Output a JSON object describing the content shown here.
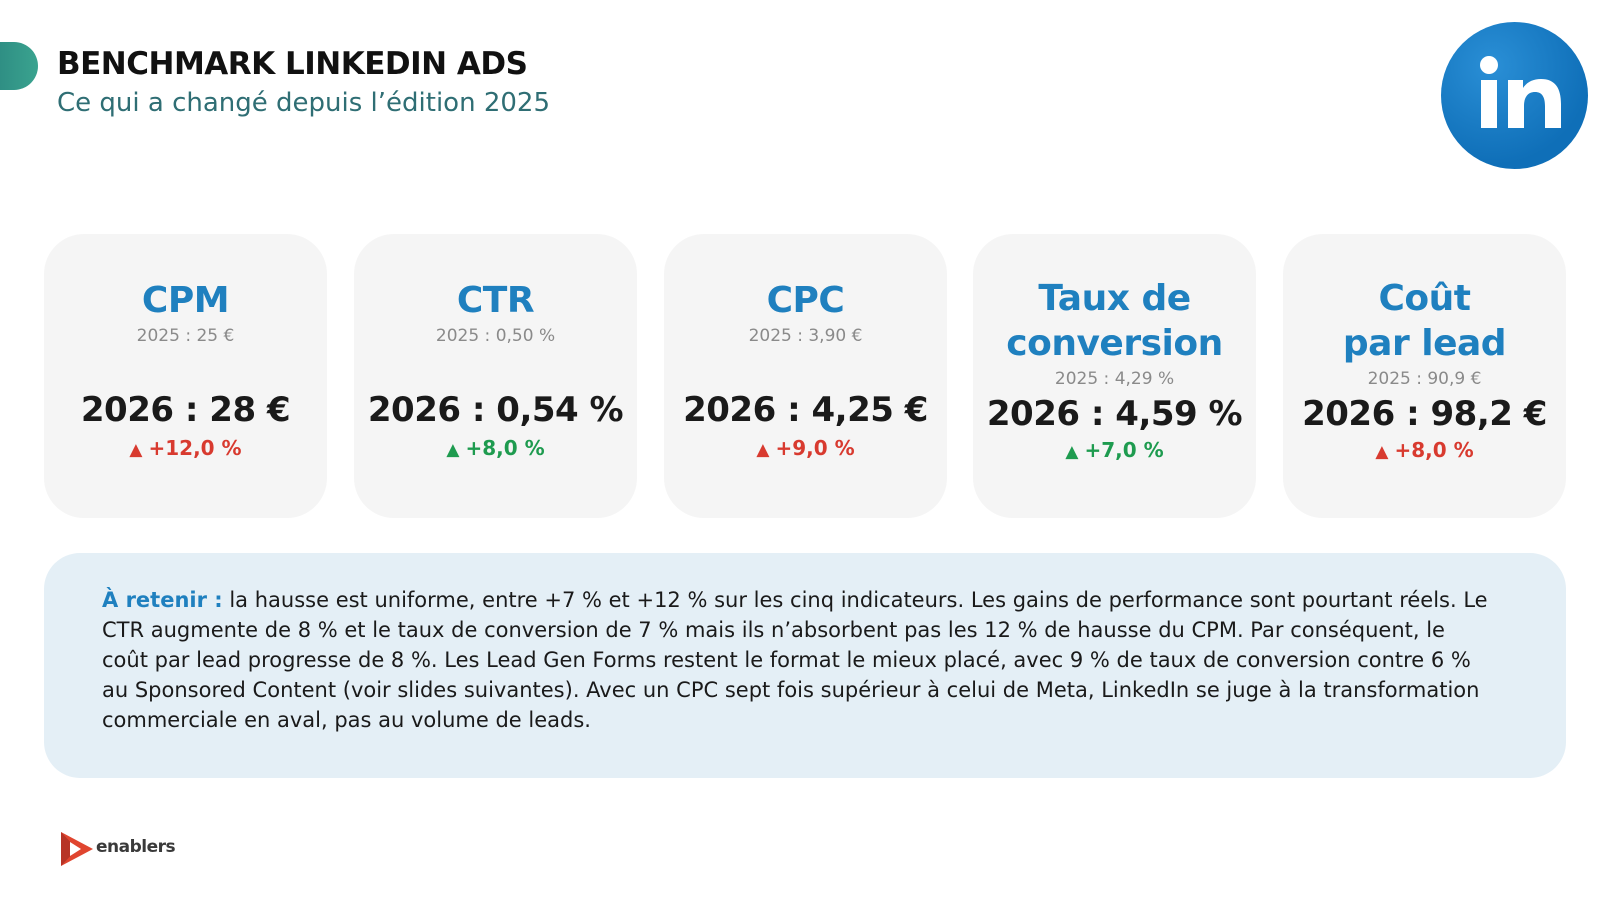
{
  "header": {
    "title": "BENCHMARK LINKEDIN ADS",
    "subtitle": "Ce qui a changé depuis l’édition 2025"
  },
  "colors": {
    "accent": "#3aa38f",
    "title_blue": "#1f80bf",
    "increase_bad": "#d83a2f",
    "increase_good": "#1e9b4f",
    "card_bg": "#f5f5f5",
    "takeaway_bg": "#e4eff6"
  },
  "icons": [
    "linkedin-logo",
    "enablers-logo",
    "triangle-up-icon"
  ],
  "metrics": [
    {
      "title": "CPM",
      "previous": "2025 : 25 €",
      "current": "2026 : 28 €",
      "change": "+12,0 %",
      "trend": "up-red"
    },
    {
      "title": "CTR",
      "previous": "2025 : 0,50 %",
      "current": "2026 : 0,54 %",
      "change": "+8,0 %",
      "trend": "up-green"
    },
    {
      "title": "CPC",
      "previous": "2025 : 3,90 €",
      "current": "2026 : 4,25 €",
      "change": "+9,0 %",
      "trend": "up-red"
    },
    {
      "title_line1": "Taux de",
      "title_line2": "conversion",
      "previous": "2025 : 4,29 %",
      "current": "2026 : 4,59 %",
      "change": "+7,0 %",
      "trend": "up-green"
    },
    {
      "title_line1": "Coût",
      "title_line2": "par lead",
      "previous": "2025 : 90,9 €",
      "current": "2026 : 98,2 €",
      "change": "+8,0 %",
      "trend": "up-red"
    }
  ],
  "takeaway": {
    "label": "À retenir :",
    "text": " la hausse est uniforme, entre +7 % et +12 % sur les cinq indicateurs. Les gains de performance sont pourtant réels. Le CTR augmente de 8 % et le taux de conversion de 7 % mais ils n’absorbent pas les 12 % de hausse du CPM. Par conséquent, le coût par lead progresse de 8 %. Les Lead Gen Forms restent le format le mieux placé, avec 9 % de taux de conversion contre 6 % au Sponsored Content (voir slides suivantes). Avec un CPC sept fois supérieur à celui de Meta, LinkedIn se juge à la transformation commerciale en aval, pas au volume de leads."
  },
  "footer": {
    "brand": "enablers"
  }
}
